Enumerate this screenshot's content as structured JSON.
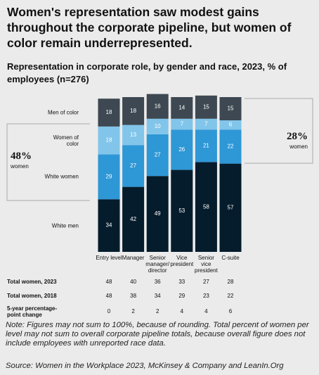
{
  "chart_data": {
    "type": "bar",
    "stacked": true,
    "title": "Women's representation saw modest gains throughout the corporate pipeline, but women of color remain underrepresented.",
    "subtitle": "Representation in corporate role, by gender and race, 2023, % of employees (n=276)",
    "categories": [
      "Entry level",
      "Manager",
      "Senior manager/ director",
      "Vice president",
      "Senior vice president",
      "C-suite"
    ],
    "series": [
      {
        "name": "White men",
        "color": "#051c2c",
        "values": [
          34,
          42,
          49,
          53,
          58,
          57
        ]
      },
      {
        "name": "White women",
        "color": "#2e97d6",
        "values": [
          29,
          27,
          27,
          26,
          21,
          22
        ]
      },
      {
        "name": "Women of color",
        "color": "#82c5ea",
        "values": [
          18,
          13,
          10,
          7,
          7,
          6
        ]
      },
      {
        "name": "Men of color",
        "color": "#3d4852",
        "values": [
          18,
          18,
          16,
          14,
          15,
          15
        ]
      }
    ],
    "annotations": [
      {
        "text": "48%",
        "subtext": "women"
      },
      {
        "text": "28%",
        "subtext": "women"
      }
    ],
    "table": {
      "rows": [
        {
          "label": "Total women, 2023",
          "values": [
            48,
            40,
            36,
            33,
            27,
            28
          ]
        },
        {
          "label": "Total women, 2018",
          "values": [
            48,
            38,
            34,
            29,
            23,
            22
          ]
        },
        {
          "label": "5-year percentage-point change",
          "values": [
            0,
            2,
            2,
            4,
            4,
            6
          ]
        }
      ]
    },
    "note": "Note: Figures may not sum to 100%, because of rounding. Total percent of women per level may not sum to overall corporate pipeline totals, because overall figure does not include employees with unreported race data.",
    "source": "Source: Women in the Workplace 2023, McKinsey & Company and LeanIn.Org"
  }
}
